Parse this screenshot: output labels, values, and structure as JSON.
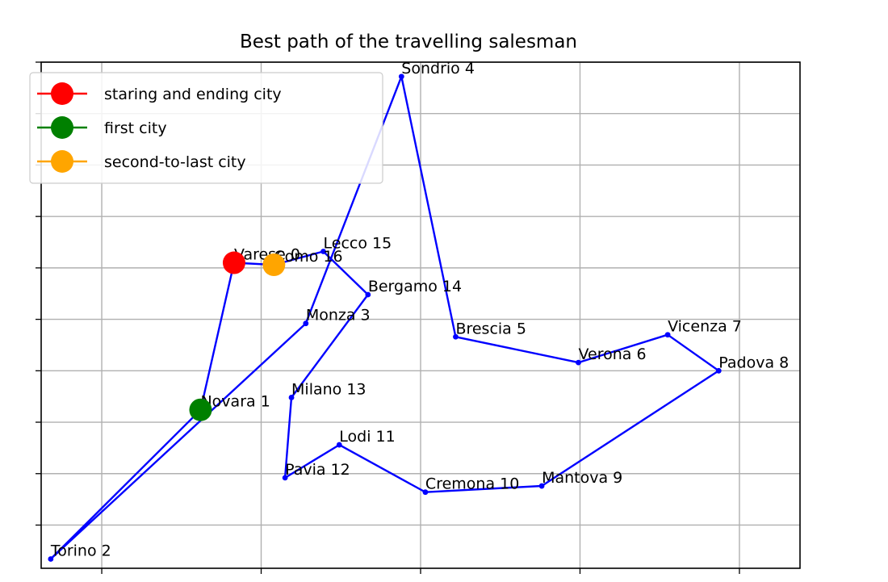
{
  "chart_data": {
    "type": "line",
    "title": "Best path of the travelling salesman",
    "xlabel": "",
    "ylabel": "",
    "xlim": [
      -0.38,
      4.38
    ],
    "ylim": [
      -0.92,
      4.0
    ],
    "x_ticks": [
      0,
      1,
      2,
      3,
      4
    ],
    "y_ticks": [
      -0.5,
      0,
      0.5,
      1,
      1.5,
      2,
      2.5,
      3,
      3.5,
      4
    ],
    "tick_labels_visible": false,
    "grid": true,
    "legend_position": "top-left",
    "cities": [
      {
        "label": "Novara 1",
        "x": 0.62,
        "y": 0.62
      },
      {
        "label": "Torino 2",
        "x": -0.32,
        "y": -0.83
      },
      {
        "label": "Monza 3",
        "x": 1.28,
        "y": 1.46
      },
      {
        "label": "Sondrio 4",
        "x": 1.88,
        "y": 3.86
      },
      {
        "label": "Brescia 5",
        "x": 2.22,
        "y": 1.33
      },
      {
        "label": "Verona 6",
        "x": 2.99,
        "y": 1.08
      },
      {
        "label": "Vicenza 7",
        "x": 3.55,
        "y": 1.35
      },
      {
        "label": "Padova 8",
        "x": 3.87,
        "y": 1.0
      },
      {
        "label": "Mantova 9",
        "x": 2.76,
        "y": -0.12
      },
      {
        "label": "Cremona 10",
        "x": 2.03,
        "y": -0.18
      },
      {
        "label": "Lodi 11",
        "x": 1.49,
        "y": 0.28
      },
      {
        "label": "Pavia 12",
        "x": 1.15,
        "y": -0.04
      },
      {
        "label": "Milano 13",
        "x": 1.19,
        "y": 0.74
      },
      {
        "label": "Bergamo 14",
        "x": 1.67,
        "y": 1.74
      },
      {
        "label": "Lecco 15",
        "x": 1.39,
        "y": 2.16
      },
      {
        "label": "Como 16",
        "x": 1.08,
        "y": 2.03
      },
      {
        "label": "Varese 0",
        "x": 0.83,
        "y": 2.05
      }
    ],
    "route": [
      0,
      1,
      2,
      3,
      4,
      5,
      6,
      7,
      8,
      9,
      10,
      11,
      12,
      13,
      14,
      15,
      16,
      0
    ],
    "series": [
      {
        "name": "staring and ending city",
        "color": "#ff0000",
        "city": 16
      },
      {
        "name": "first city",
        "color": "#008000",
        "city": 0
      },
      {
        "name": "second-to-last city",
        "color": "#ffa500",
        "city": 15
      }
    ],
    "path_color": "#0000ff"
  }
}
